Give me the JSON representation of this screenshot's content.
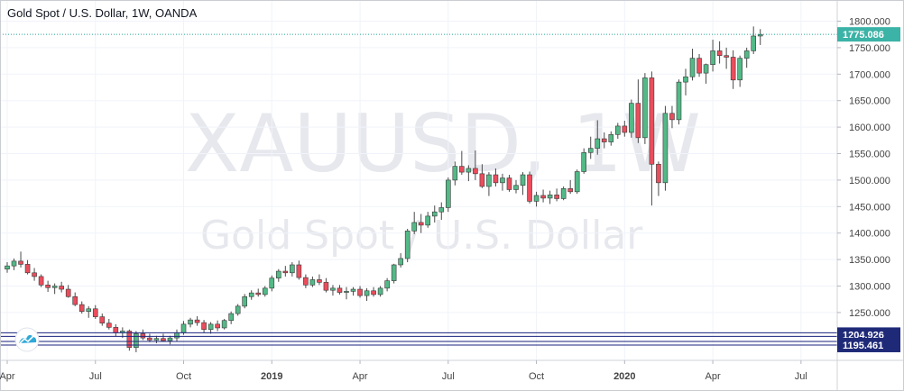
{
  "chart_data": {
    "type": "candlestick",
    "title": "Gold Spot / U.S. Dollar, 1W, OANDA",
    "watermark": {
      "symbol": "XAUUSD, 1W",
      "name": "Gold Spot / U.S. Dollar"
    },
    "colors": {
      "up": "#53b987",
      "down": "#eb4d5c",
      "price_line": "#26a69a",
      "price_tag": "#3bb3a6",
      "level_line": "#1a237e",
      "level_tag": "#1e2a78"
    },
    "ylim": [
      1155,
      1822
    ],
    "y_ticks": [
      "1800.000",
      "1750.000",
      "1700.000",
      "1650.000",
      "1600.000",
      "1550.000",
      "1500.000",
      "1450.000",
      "1400.000",
      "1350.000",
      "1300.000",
      "1250.000"
    ],
    "x_ticks": [
      {
        "label": "Apr",
        "bar": 0,
        "bold": false
      },
      {
        "label": "Jul",
        "bar": 13,
        "bold": false
      },
      {
        "label": "Oct",
        "bar": 26,
        "bold": false
      },
      {
        "label": "2019",
        "bar": 39,
        "bold": true
      },
      {
        "label": "Apr",
        "bar": 52,
        "bold": false
      },
      {
        "label": "Jul",
        "bar": 65,
        "bold": false
      },
      {
        "label": "Oct",
        "bar": 78,
        "bold": false
      },
      {
        "label": "2020",
        "bar": 91,
        "bold": true
      },
      {
        "label": "Apr",
        "bar": 104,
        "bold": false
      },
      {
        "label": "Jul",
        "bar": 117,
        "bold": false
      }
    ],
    "current_price": "1775.086",
    "current_price_value": 1775.086,
    "horizontal_levels": [
      {
        "label": "1204.926",
        "value": 1204.926
      },
      {
        "label": "1195.461",
        "value": 1195.461
      }
    ],
    "ohlc": [
      [
        1332,
        1345,
        1325,
        1338
      ],
      [
        1338,
        1352,
        1330,
        1347
      ],
      [
        1347,
        1365,
        1335,
        1341
      ],
      [
        1341,
        1349,
        1322,
        1325
      ],
      [
        1325,
        1334,
        1310,
        1318
      ],
      [
        1318,
        1322,
        1298,
        1302
      ],
      [
        1302,
        1310,
        1289,
        1297
      ],
      [
        1297,
        1305,
        1285,
        1300
      ],
      [
        1300,
        1308,
        1288,
        1294
      ],
      [
        1294,
        1302,
        1278,
        1280
      ],
      [
        1280,
        1288,
        1262,
        1265
      ],
      [
        1265,
        1271,
        1248,
        1252
      ],
      [
        1252,
        1262,
        1240,
        1257
      ],
      [
        1257,
        1264,
        1238,
        1242
      ],
      [
        1242,
        1248,
        1225,
        1230
      ],
      [
        1230,
        1238,
        1218,
        1222
      ],
      [
        1222,
        1228,
        1205,
        1212
      ],
      [
        1212,
        1222,
        1202,
        1215
      ],
      [
        1215,
        1218,
        1178,
        1184
      ],
      [
        1184,
        1215,
        1175,
        1210
      ],
      [
        1210,
        1218,
        1198,
        1202
      ],
      [
        1202,
        1210,
        1194,
        1198
      ],
      [
        1198,
        1206,
        1192,
        1201
      ],
      [
        1201,
        1210,
        1195,
        1197
      ],
      [
        1197,
        1206,
        1190,
        1202
      ],
      [
        1202,
        1218,
        1196,
        1212
      ],
      [
        1212,
        1234,
        1208,
        1228
      ],
      [
        1228,
        1240,
        1222,
        1236
      ],
      [
        1236,
        1243,
        1225,
        1231
      ],
      [
        1231,
        1236,
        1212,
        1218
      ],
      [
        1218,
        1232,
        1210,
        1228
      ],
      [
        1228,
        1235,
        1215,
        1221
      ],
      [
        1221,
        1238,
        1218,
        1235
      ],
      [
        1235,
        1252,
        1228,
        1248
      ],
      [
        1248,
        1266,
        1244,
        1262
      ],
      [
        1262,
        1285,
        1258,
        1280
      ],
      [
        1280,
        1292,
        1274,
        1287
      ],
      [
        1287,
        1295,
        1280,
        1284
      ],
      [
        1284,
        1300,
        1280,
        1296
      ],
      [
        1296,
        1320,
        1290,
        1315
      ],
      [
        1315,
        1332,
        1308,
        1328
      ],
      [
        1328,
        1338,
        1318,
        1325
      ],
      [
        1325,
        1345,
        1318,
        1340
      ],
      [
        1340,
        1348,
        1312,
        1316
      ],
      [
        1316,
        1322,
        1296,
        1302
      ],
      [
        1302,
        1318,
        1298,
        1312
      ],
      [
        1312,
        1322,
        1302,
        1307
      ],
      [
        1307,
        1315,
        1288,
        1292
      ],
      [
        1292,
        1302,
        1282,
        1296
      ],
      [
        1296,
        1302,
        1284,
        1288
      ],
      [
        1288,
        1298,
        1275,
        1290
      ],
      [
        1290,
        1298,
        1282,
        1294
      ],
      [
        1294,
        1300,
        1278,
        1282
      ],
      [
        1282,
        1296,
        1272,
        1291
      ],
      [
        1291,
        1298,
        1280,
        1284
      ],
      [
        1284,
        1300,
        1280,
        1296
      ],
      [
        1296,
        1315,
        1290,
        1310
      ],
      [
        1310,
        1342,
        1305,
        1340
      ],
      [
        1340,
        1362,
        1335,
        1352
      ],
      [
        1352,
        1408,
        1345,
        1404
      ],
      [
        1404,
        1440,
        1398,
        1420
      ],
      [
        1420,
        1436,
        1400,
        1415
      ],
      [
        1415,
        1440,
        1410,
        1432
      ],
      [
        1432,
        1452,
        1420,
        1440
      ],
      [
        1440,
        1458,
        1425,
        1448
      ],
      [
        1448,
        1505,
        1440,
        1500
      ],
      [
        1500,
        1535,
        1490,
        1526
      ],
      [
        1526,
        1555,
        1510,
        1515
      ],
      [
        1515,
        1528,
        1498,
        1522
      ],
      [
        1522,
        1556,
        1500,
        1512
      ],
      [
        1512,
        1530,
        1485,
        1488
      ],
      [
        1488,
        1515,
        1470,
        1510
      ],
      [
        1510,
        1522,
        1488,
        1495
      ],
      [
        1495,
        1512,
        1480,
        1504
      ],
      [
        1504,
        1510,
        1478,
        1482
      ],
      [
        1482,
        1500,
        1475,
        1490
      ],
      [
        1490,
        1515,
        1472,
        1510
      ],
      [
        1510,
        1516,
        1456,
        1460
      ],
      [
        1460,
        1478,
        1450,
        1471
      ],
      [
        1471,
        1482,
        1458,
        1466
      ],
      [
        1466,
        1480,
        1455,
        1472
      ],
      [
        1472,
        1484,
        1460,
        1465
      ],
      [
        1465,
        1488,
        1462,
        1484
      ],
      [
        1484,
        1500,
        1474,
        1478
      ],
      [
        1478,
        1520,
        1474,
        1516
      ],
      [
        1516,
        1560,
        1512,
        1552
      ],
      [
        1552,
        1582,
        1540,
        1560
      ],
      [
        1560,
        1613,
        1548,
        1578
      ],
      [
        1578,
        1590,
        1560,
        1572
      ],
      [
        1572,
        1592,
        1565,
        1586
      ],
      [
        1586,
        1608,
        1578,
        1602
      ],
      [
        1602,
        1612,
        1582,
        1590
      ],
      [
        1590,
        1652,
        1580,
        1645
      ],
      [
        1645,
        1690,
        1570,
        1580
      ],
      [
        1580,
        1702,
        1568,
        1693
      ],
      [
        1693,
        1705,
        1452,
        1530
      ],
      [
        1530,
        1535,
        1470,
        1495
      ],
      [
        1495,
        1640,
        1480,
        1626
      ],
      [
        1626,
        1640,
        1598,
        1614
      ],
      [
        1614,
        1690,
        1605,
        1685
      ],
      [
        1685,
        1710,
        1660,
        1695
      ],
      [
        1695,
        1748,
        1688,
        1730
      ],
      [
        1730,
        1738,
        1695,
        1702
      ],
      [
        1702,
        1720,
        1682,
        1718
      ],
      [
        1718,
        1765,
        1705,
        1744
      ],
      [
        1744,
        1762,
        1720,
        1735
      ],
      [
        1735,
        1750,
        1710,
        1732
      ],
      [
        1732,
        1745,
        1672,
        1689
      ],
      [
        1689,
        1735,
        1676,
        1730
      ],
      [
        1730,
        1750,
        1712,
        1744
      ],
      [
        1744,
        1790,
        1738,
        1772
      ],
      [
        1772,
        1785,
        1755,
        1775
      ]
    ]
  }
}
